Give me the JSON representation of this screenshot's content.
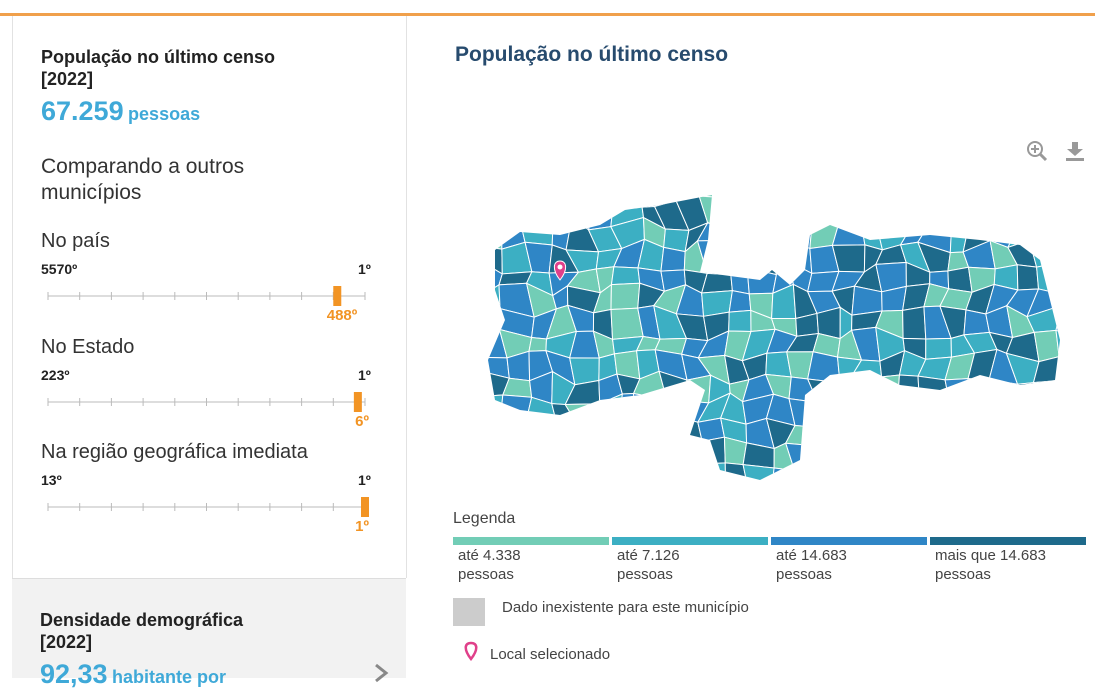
{
  "panel": {
    "title": "População no último censo",
    "year": "[2022]",
    "value": "67.259",
    "unit": "pessoas",
    "compare_heading": "Comparando a outros municípios",
    "rankings": [
      {
        "label": "No país",
        "min": {
          "value": 5570,
          "label": "5570º"
        },
        "max": {
          "value": 1,
          "label": "1º"
        },
        "position": {
          "value": 488,
          "label": "488º"
        }
      },
      {
        "label": "No Estado",
        "min": {
          "value": 223,
          "label": "223º"
        },
        "max": {
          "value": 1,
          "label": "1º"
        },
        "position": {
          "value": 6,
          "label": "6º"
        }
      },
      {
        "label": "Na região geográfica imediata",
        "min": {
          "value": 13,
          "label": "13º"
        },
        "max": {
          "value": 1,
          "label": "1º"
        },
        "position": {
          "value": 1,
          "label": "1º"
        }
      }
    ]
  },
  "next_panel": {
    "title": "Densidade demográfica",
    "year": "[2022]",
    "value": "92,33",
    "unit": "habitante por"
  },
  "map": {
    "title": "População no último censo",
    "legend_title": "Legenda",
    "legend": [
      {
        "label": "até 4.338",
        "unit": "pessoas",
        "color": "#72cdb6"
      },
      {
        "label": "até 7.126",
        "unit": "pessoas",
        "color": "#3cafc3"
      },
      {
        "label": "até 14.683",
        "unit": "pessoas",
        "color": "#2f86c6"
      },
      {
        "label": "mais que 14.683",
        "unit": "pessoas",
        "color": "#1e6a8b"
      }
    ],
    "missing": {
      "label": "Dado inexistente para este município",
      "color": "#cccccc"
    },
    "selected": "Local selecionado"
  }
}
